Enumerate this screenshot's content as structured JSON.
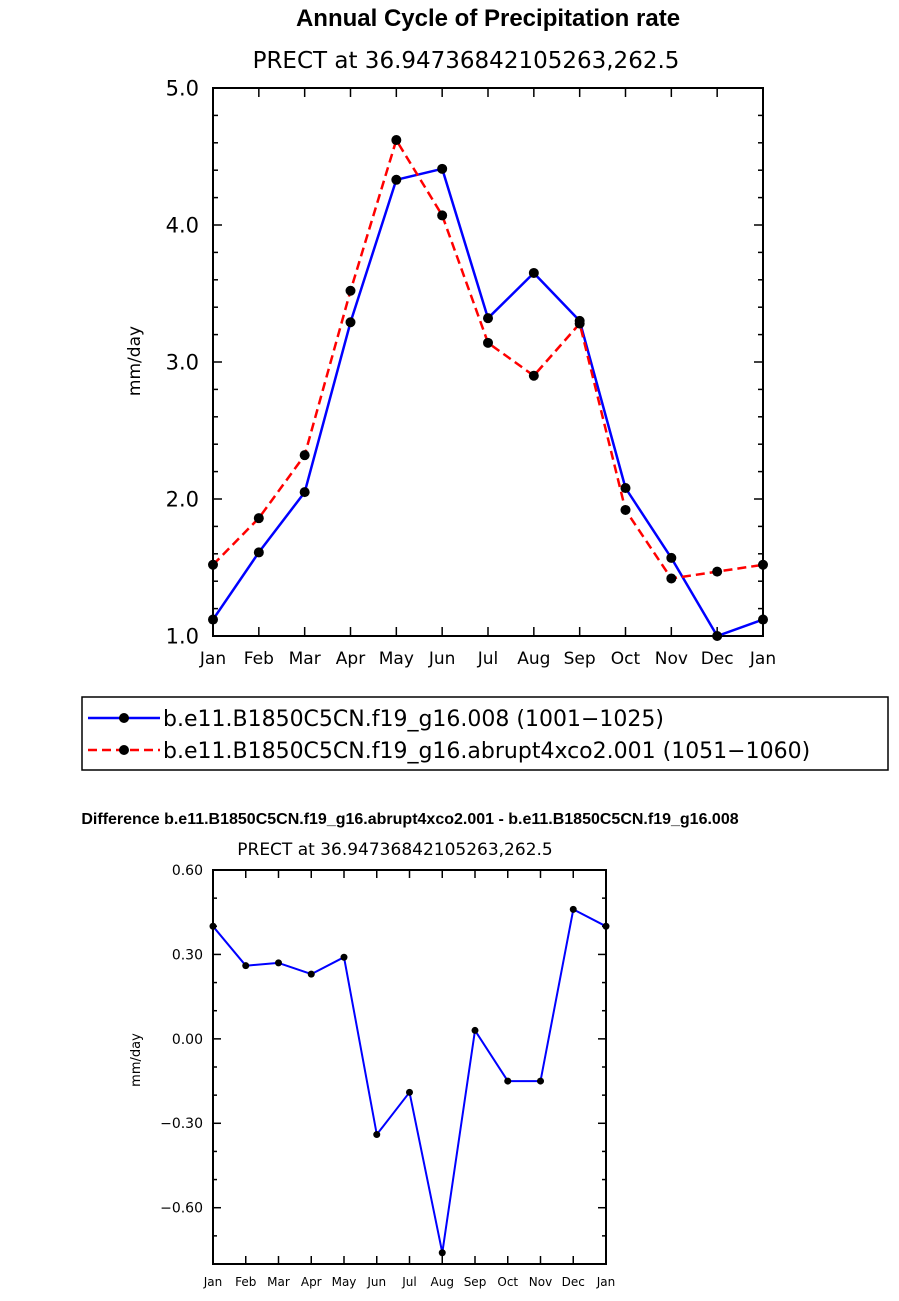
{
  "chart_data": [
    {
      "type": "line",
      "title": "Annual Cycle of Precipitation rate",
      "subtitle": "PRECT at 36.94736842105263,262.5",
      "xlabel": "",
      "ylabel": "mm/day",
      "categories": [
        "Jan",
        "Feb",
        "Mar",
        "Apr",
        "May",
        "Jun",
        "Jul",
        "Aug",
        "Sep",
        "Oct",
        "Nov",
        "Dec",
        "Jan"
      ],
      "ylim": [
        1.0,
        5.0
      ],
      "yticks": [
        "1.0",
        "2.0",
        "3.0",
        "4.0",
        "5.0"
      ],
      "grid": false,
      "legend_position": "below",
      "series": [
        {
          "name": "b.e11.B1850C5CN.f19_g16.008 (1001−1025)",
          "color": "#0000ff",
          "dash": "solid",
          "values": [
            1.12,
            1.61,
            2.05,
            3.29,
            4.33,
            4.41,
            3.32,
            3.65,
            3.3,
            2.08,
            1.57,
            1.0,
            1.12
          ]
        },
        {
          "name": "b.e11.B1850C5CN.f19_g16.abrupt4xco2.001 (1051−1060)",
          "color": "#ff0000",
          "dash": "dashed",
          "values": [
            1.52,
            1.86,
            2.32,
            3.52,
            4.62,
            4.07,
            3.14,
            2.9,
            3.28,
            1.92,
            1.42,
            1.47,
            1.52
          ]
        }
      ]
    },
    {
      "type": "line",
      "title": "Difference b.e11.B1850C5CN.f19_g16.abrupt4xco2.001 - b.e11.B1850C5CN.f19_g16.008",
      "subtitle": "PRECT at 36.94736842105263,262.5",
      "xlabel": "",
      "ylabel": "mm/day",
      "categories": [
        "Jan",
        "Feb",
        "Mar",
        "Apr",
        "May",
        "Jun",
        "Jul",
        "Aug",
        "Sep",
        "Oct",
        "Nov",
        "Dec",
        "Jan"
      ],
      "ylim": [
        -0.8,
        0.6
      ],
      "yticks": [
        "−0.60",
        "−0.30",
        "0.00",
        "0.30",
        "0.60"
      ],
      "grid": false,
      "series": [
        {
          "name": "difference",
          "color": "#0000ff",
          "dash": "solid",
          "values": [
            0.4,
            0.26,
            0.27,
            0.23,
            0.29,
            -0.34,
            -0.19,
            -0.76,
            0.03,
            -0.15,
            -0.15,
            0.46,
            0.4
          ]
        }
      ]
    }
  ]
}
